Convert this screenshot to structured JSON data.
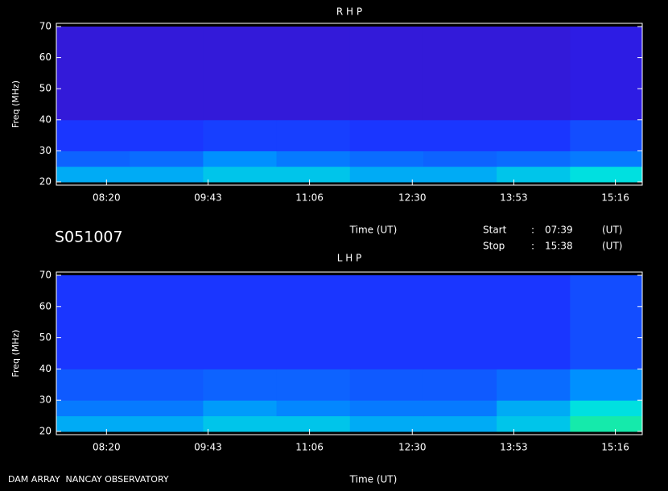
{
  "header": {
    "station": "S051007",
    "start_label": "Start",
    "start_sep": ":",
    "start_time": "07:39",
    "start_unit": "(UT)",
    "stop_label": "Stop",
    "stop_sep": ":",
    "stop_time": "15:38",
    "stop_unit": "(UT)",
    "footer": "DAM ARRAY  NANCAY OBSERVATORY"
  },
  "chart_data": [
    {
      "type": "spectrogram",
      "title": "R H P",
      "x_label": "Time (UT)",
      "y_label": "Freq (MHz)",
      "xlim": [
        459,
        938
      ],
      "xticks": [
        {
          "value": 500,
          "label": "08:20"
        },
        {
          "value": 583,
          "label": "09:43"
        },
        {
          "value": 666,
          "label": "11:06"
        },
        {
          "value": 750,
          "label": "12:30"
        },
        {
          "value": 833,
          "label": "13:53"
        },
        {
          "value": 916,
          "label": "15:16"
        }
      ],
      "ylim": [
        20,
        70
      ],
      "yticks": [
        20,
        30,
        40,
        50,
        60,
        70
      ],
      "x_bins": [
        459,
        519,
        579,
        639,
        699,
        759,
        819,
        879,
        938
      ],
      "y_bins": [
        20,
        25,
        30,
        40,
        70
      ],
      "values": [
        [
          0.55,
          0.55,
          0.6,
          0.6,
          0.55,
          0.55,
          0.6,
          0.65
        ],
        [
          0.4,
          0.42,
          0.5,
          0.45,
          0.42,
          0.4,
          0.42,
          0.45
        ],
        [
          0.3,
          0.3,
          0.32,
          0.32,
          0.3,
          0.3,
          0.3,
          0.35
        ],
        [
          0.15,
          0.15,
          0.15,
          0.15,
          0.15,
          0.15,
          0.15,
          0.18
        ]
      ]
    },
    {
      "type": "spectrogram",
      "title": "L H P",
      "x_label": "Time (UT)",
      "y_label": "Freq (MHz)",
      "xlim": [
        459,
        938
      ],
      "xticks": [
        {
          "value": 500,
          "label": "08:20"
        },
        {
          "value": 583,
          "label": "09:43"
        },
        {
          "value": 666,
          "label": "11:06"
        },
        {
          "value": 750,
          "label": "12:30"
        },
        {
          "value": 833,
          "label": "13:53"
        },
        {
          "value": 916,
          "label": "15:16"
        }
      ],
      "ylim": [
        20,
        70
      ],
      "yticks": [
        20,
        30,
        40,
        50,
        60,
        70
      ],
      "x_bins": [
        459,
        519,
        579,
        639,
        699,
        759,
        819,
        879,
        938
      ],
      "y_bins": [
        20,
        25,
        30,
        40,
        70
      ],
      "values": [
        [
          0.55,
          0.55,
          0.6,
          0.6,
          0.55,
          0.55,
          0.6,
          0.7
        ],
        [
          0.45,
          0.45,
          0.52,
          0.48,
          0.45,
          0.45,
          0.55,
          0.65
        ],
        [
          0.38,
          0.38,
          0.4,
          0.4,
          0.38,
          0.38,
          0.42,
          0.5
        ],
        [
          0.3,
          0.3,
          0.3,
          0.3,
          0.3,
          0.3,
          0.3,
          0.35
        ]
      ]
    }
  ]
}
